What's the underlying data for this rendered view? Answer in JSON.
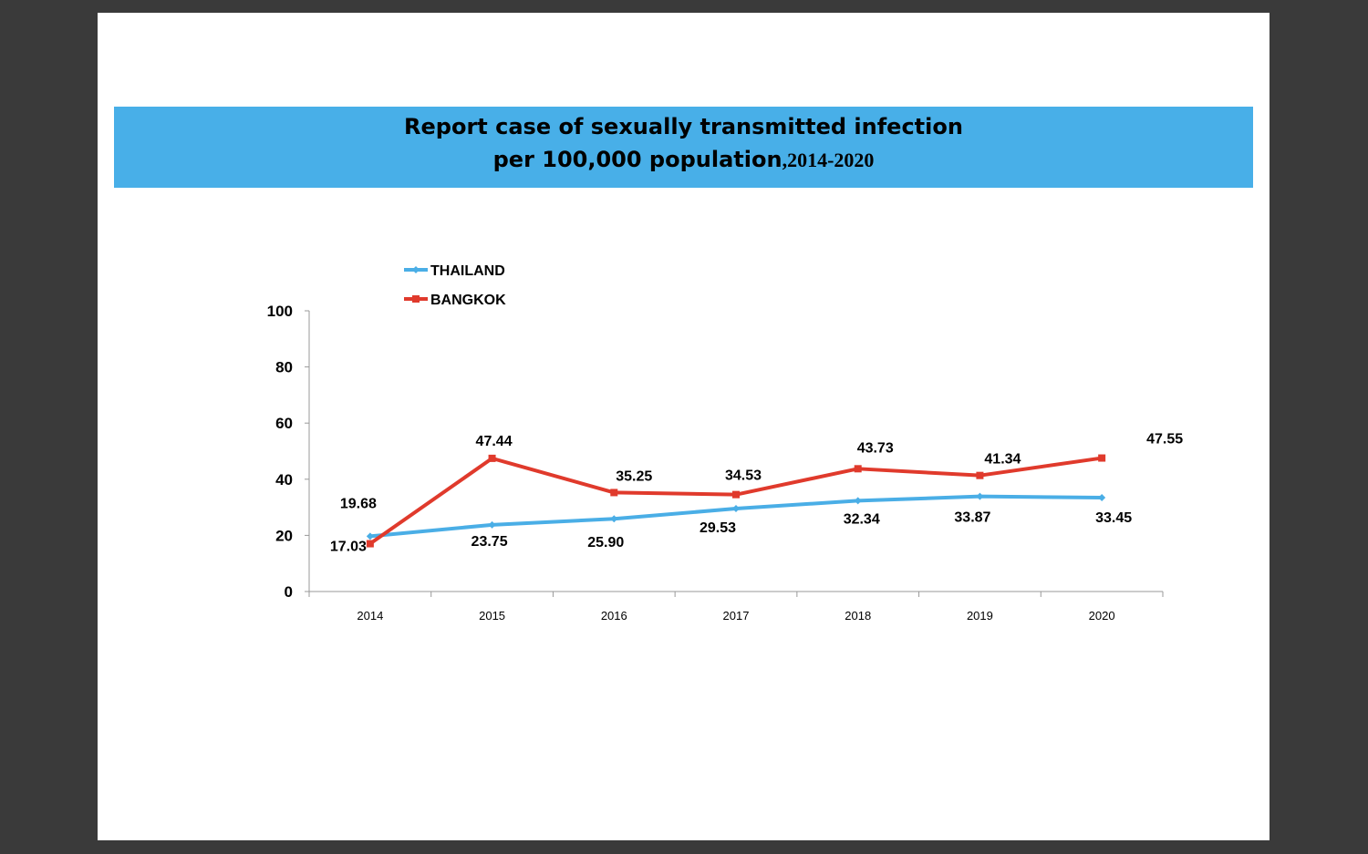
{
  "title": {
    "line1": "Report case of sexually transmitted infection",
    "line2_main": "per 100,000 population",
    "line2_years": ",2014-2020"
  },
  "colors": {
    "band": "#48afe8",
    "thailand": "#4aaee6",
    "bangkok": "#e03a2c"
  },
  "chart_data": {
    "type": "line",
    "categories": [
      "2014",
      "2015",
      "2016",
      "2017",
      "2018",
      "2019",
      "2020"
    ],
    "series": [
      {
        "name": "THAILAND",
        "values": [
          19.68,
          23.75,
          25.9,
          29.53,
          32.34,
          33.87,
          33.45
        ],
        "labels": [
          "19.68",
          "23.75",
          "25.90",
          "29.53",
          "32.34",
          "33.87",
          "33.45"
        ]
      },
      {
        "name": "BANGKOK",
        "values": [
          17.03,
          47.44,
          35.25,
          34.53,
          43.73,
          41.34,
          47.55
        ],
        "labels": [
          "17.03",
          "47.44",
          "35.25",
          "34.53",
          "43.73",
          "41.34",
          "47.55"
        ]
      }
    ],
    "yticks": [
      "0",
      "20",
      "40",
      "60",
      "80",
      "100"
    ],
    "ylim": [
      0,
      100
    ],
    "grid": false,
    "legend": "top-left"
  }
}
